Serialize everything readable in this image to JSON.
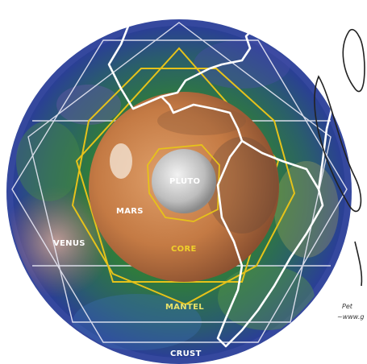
{
  "labels": {
    "pluto": "PLUTO",
    "mars": "MARS",
    "venus": "VENUS",
    "core": "CORE",
    "mantel": "MANTEL",
    "crust": "CRUST"
  },
  "side_text": {
    "line1": "Pet",
    "line2": "~www.g"
  },
  "colors": {
    "ocean_blue": "#2c3f9b",
    "planet_green": "#2f8a3a",
    "mars_orange": "#c98048",
    "pluto_gray": "#cfcfcf",
    "geometry_yellow": "#e6c21a",
    "label_white": "#ffffff",
    "core_label": "#f0d02a",
    "mantel_label": "#e8e26a"
  }
}
